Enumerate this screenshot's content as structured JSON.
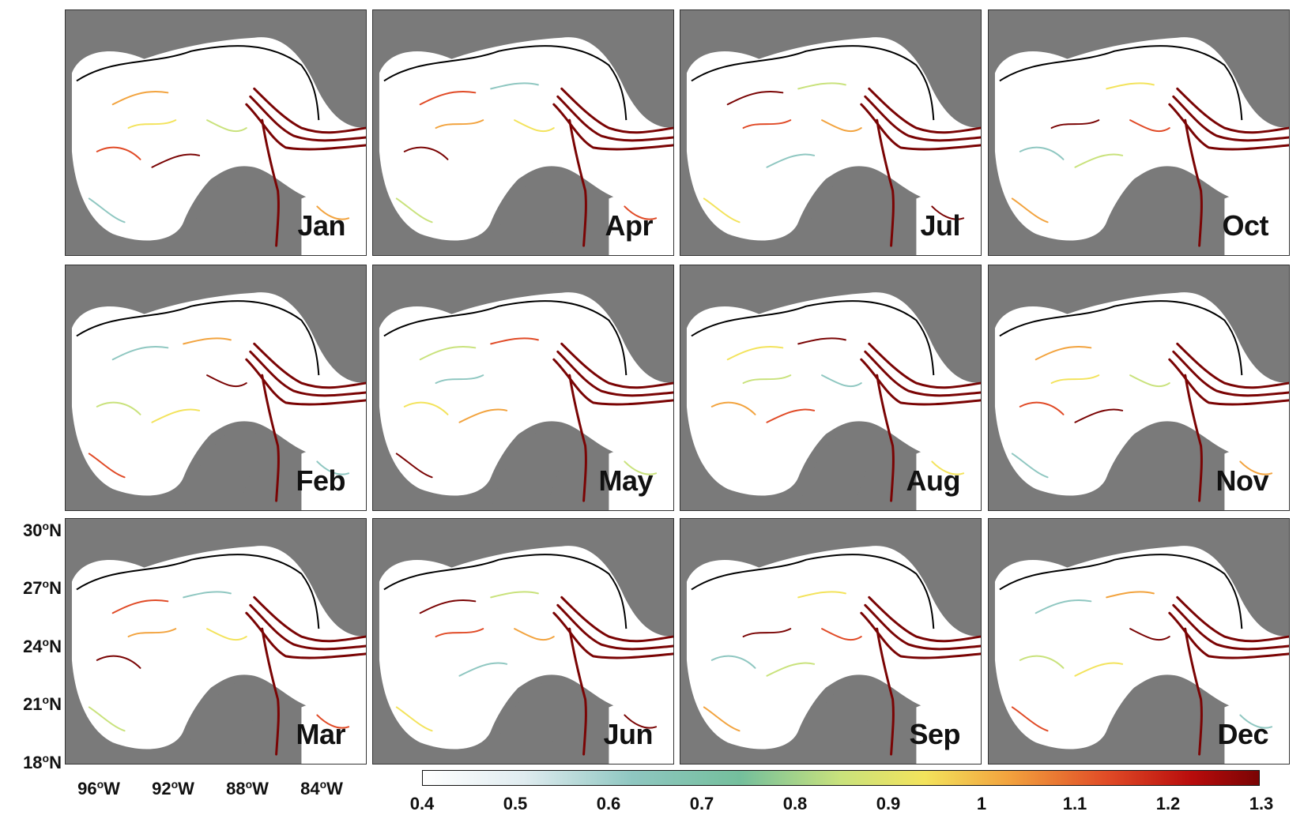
{
  "panels": [
    "Jan",
    "Apr",
    "Jul",
    "Oct",
    "Feb",
    "May",
    "Aug",
    "Nov",
    "Mar",
    "Jun",
    "Sep",
    "Dec"
  ],
  "y_axis": {
    "ticks": [
      "30",
      "27",
      "24",
      "21",
      "18"
    ],
    "degree": "o",
    "hemisphere": "N"
  },
  "x_axis": {
    "ticks": [
      "96",
      "92",
      "88",
      "84"
    ],
    "degree": "o",
    "hemisphere": "W"
  },
  "colorbar": {
    "ticks": [
      "0.4",
      "0.5",
      "0.6",
      "0.7",
      "0.8",
      "0.9",
      "1",
      "1.1",
      "1.2",
      "1.3"
    ],
    "min": 0.4,
    "max": 1.3,
    "colors": [
      "#ffffff",
      "#8fc7c1",
      "#c9e27c",
      "#f3e35c",
      "#f2a33e",
      "#e04a26",
      "#7a0404"
    ]
  },
  "colors": {
    "land": "#7a7a7a",
    "ocean": "#ffffff",
    "contour": "#000000"
  }
}
